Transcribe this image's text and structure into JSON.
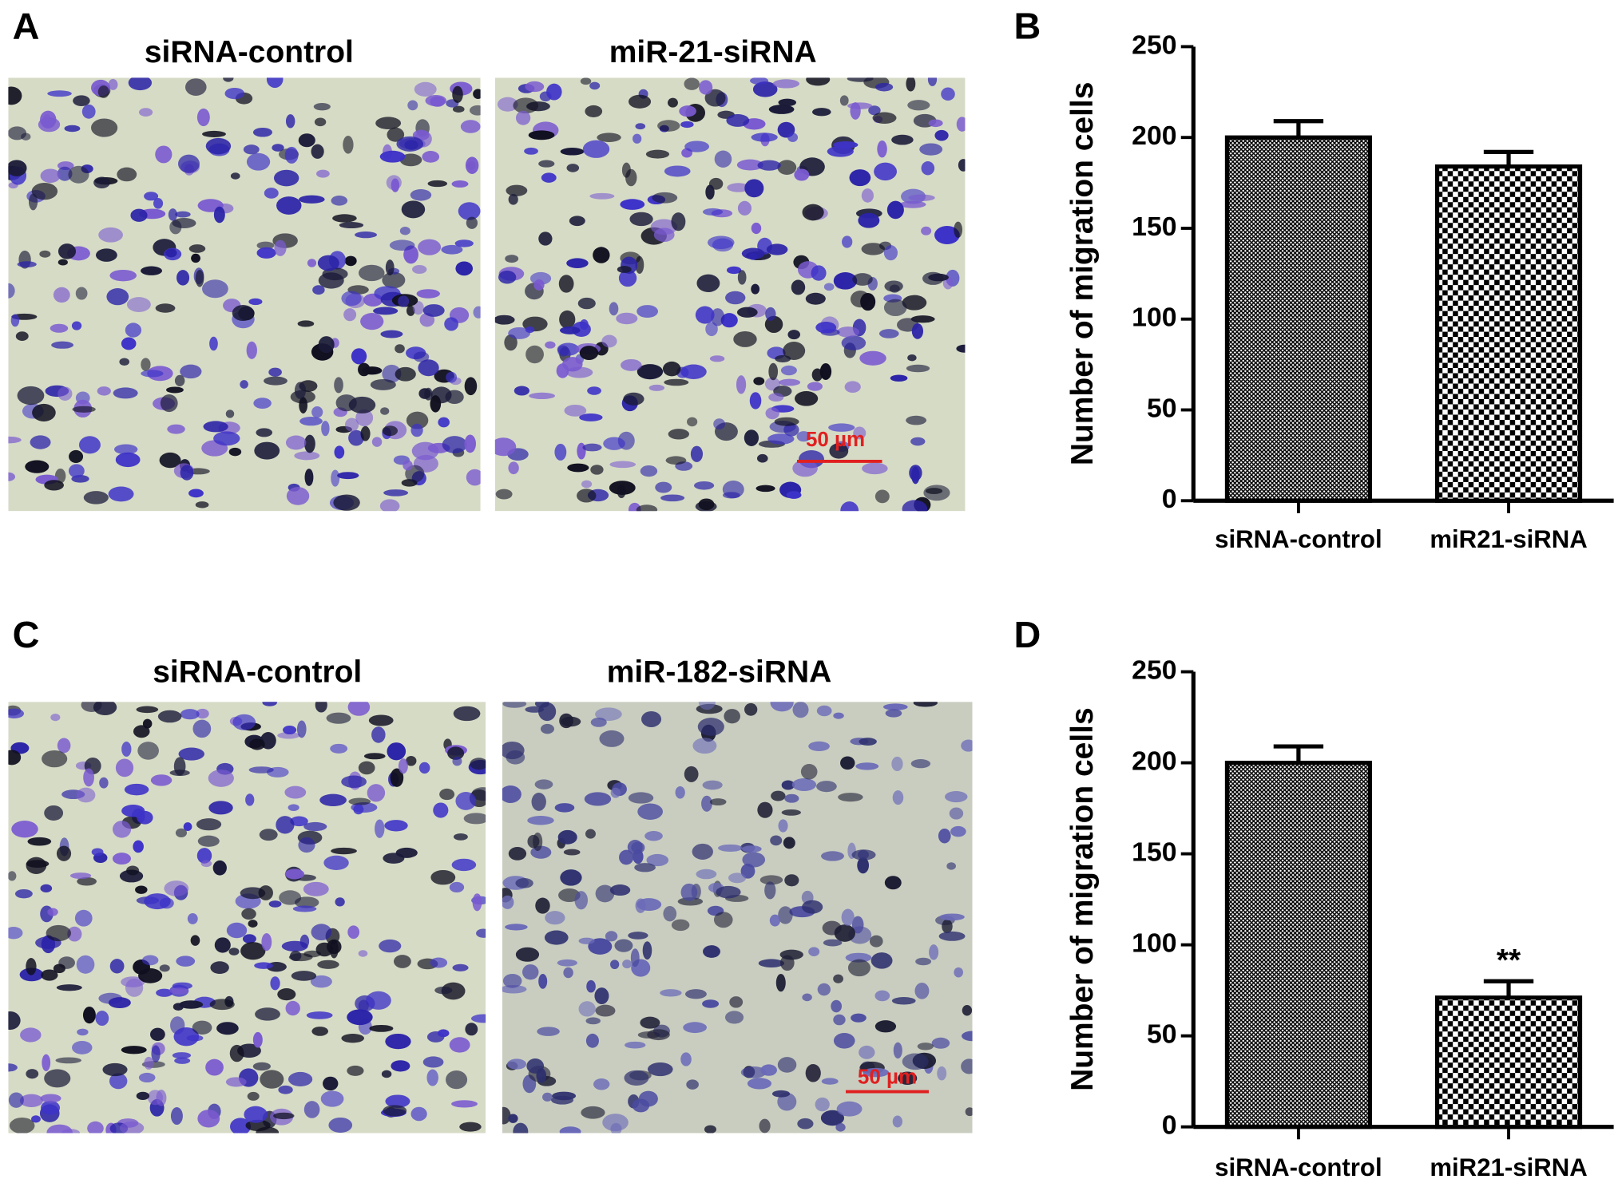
{
  "figure": {
    "panels": [
      {
        "label": "A",
        "images": [
          {
            "title": "siRNA-control"
          },
          {
            "title": "miR-21-siRNA",
            "scale_bar": "50 µm"
          }
        ]
      },
      {
        "label": "C",
        "images": [
          {
            "title": "siRNA-control"
          },
          {
            "title": "miR-182-siRNA",
            "scale_bar": "50 µm"
          }
        ]
      }
    ]
  },
  "chart_data": [
    {
      "type": "bar",
      "panel": "B",
      "ylabel": "Number of migration cells",
      "categories": [
        "siRNA-control",
        "miR21-siRNA"
      ],
      "values": [
        200,
        184
      ],
      "errors": [
        9,
        8
      ],
      "color": "#000000",
      "ylim": [
        0,
        250
      ],
      "yticks": [
        0,
        50,
        100,
        150,
        200,
        250
      ]
    },
    {
      "type": "bar",
      "panel": "D",
      "ylabel": "Number of migration cells",
      "categories": [
        "siRNA-control",
        "miR21-siRNA"
      ],
      "values": [
        200,
        71
      ],
      "errors": [
        9,
        9
      ],
      "significance": [
        null,
        "**"
      ],
      "color": "#000000",
      "ylim": [
        0,
        250
      ],
      "yticks": [
        0,
        50,
        100,
        150,
        200,
        250
      ]
    }
  ]
}
